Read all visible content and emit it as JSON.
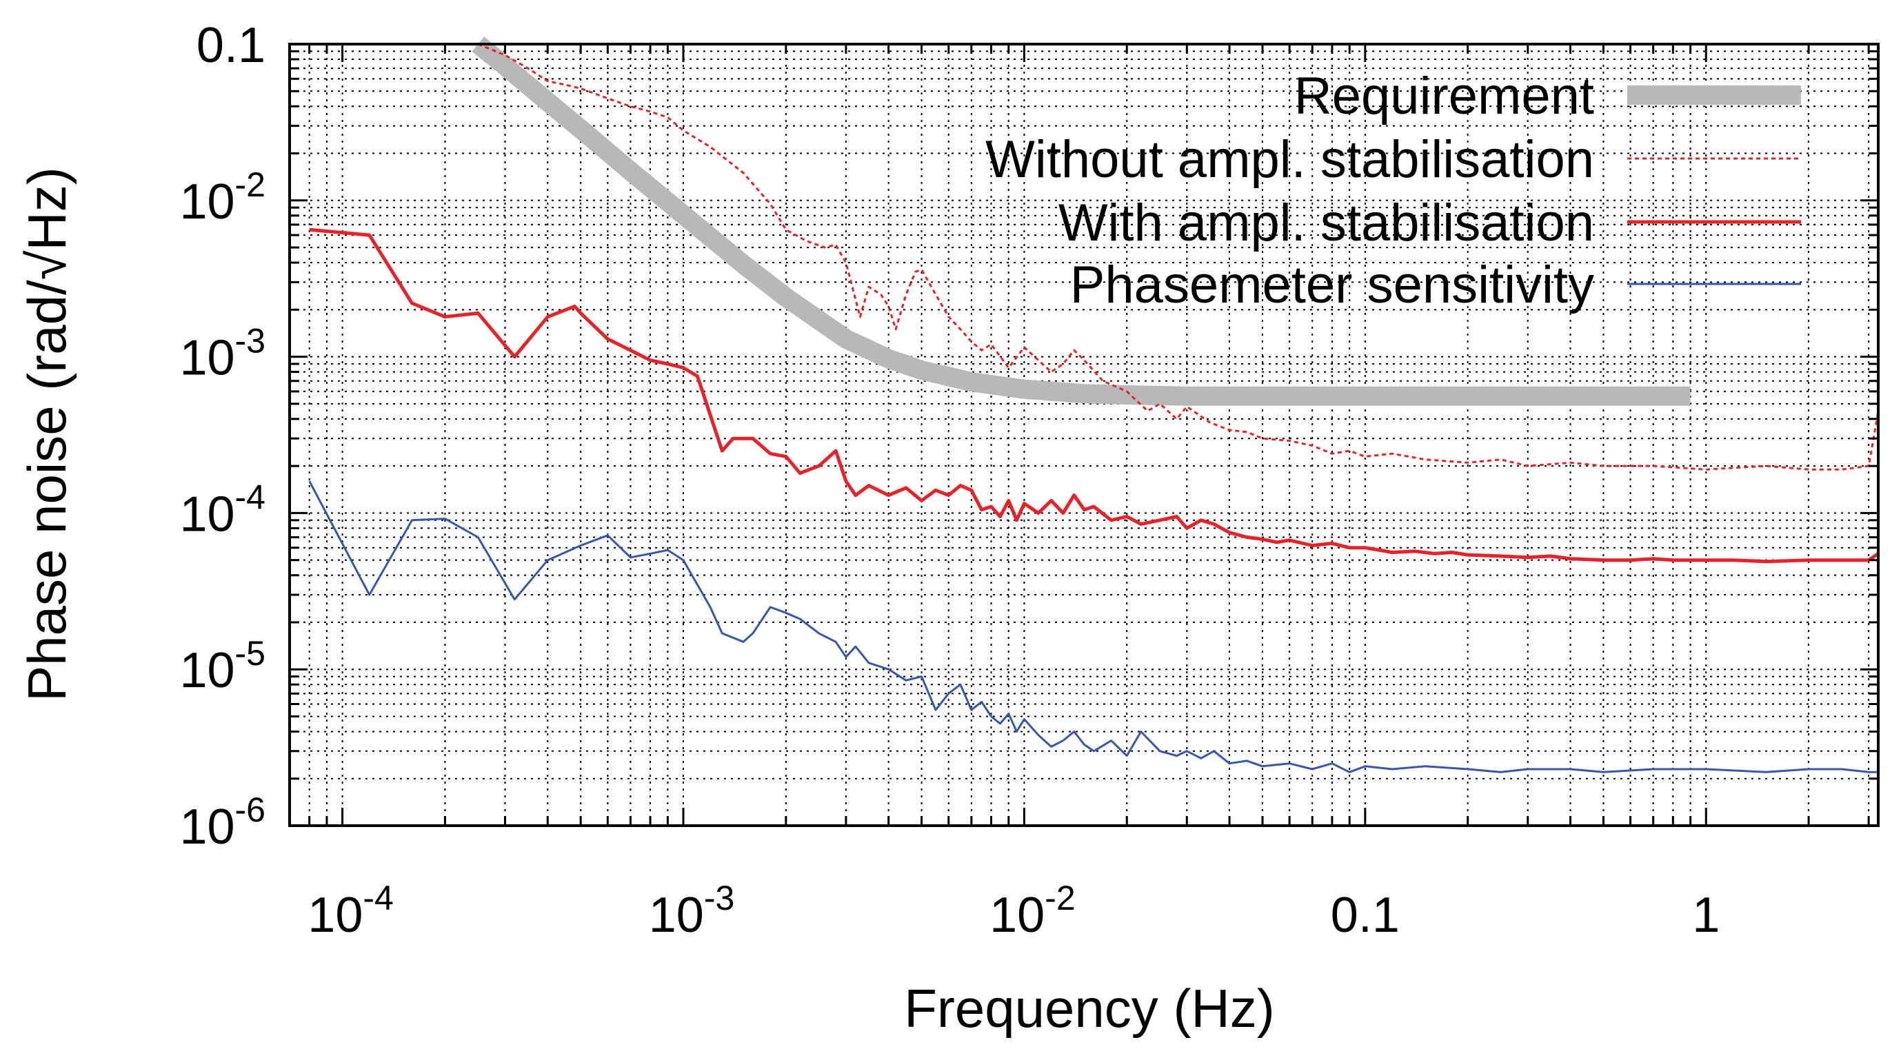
{
  "chart_data": {
    "type": "line",
    "xscale": "log",
    "yscale": "log",
    "title": "",
    "xlabel": "Frequency (Hz)",
    "ylabel": "Phase noise (rad/√Hz)",
    "xlim": [
      7e-05,
      3.2
    ],
    "ylim": [
      1e-06,
      0.1
    ],
    "grid": true,
    "legend_position": "top-right",
    "x_ticks": [
      {
        "value": 0.0001,
        "mantissa": "10",
        "exp": "-4"
      },
      {
        "value": 0.001,
        "mantissa": "10",
        "exp": "-3"
      },
      {
        "value": 0.01,
        "mantissa": "10",
        "exp": "-2"
      },
      {
        "value": 0.1,
        "mantissa": "0.1",
        "exp": ""
      },
      {
        "value": 1,
        "mantissa": "1",
        "exp": ""
      }
    ],
    "y_ticks": [
      {
        "value": 1e-06,
        "mantissa": "10",
        "exp": "-6"
      },
      {
        "value": 1e-05,
        "mantissa": "10",
        "exp": "-5"
      },
      {
        "value": 0.0001,
        "mantissa": "10",
        "exp": "-4"
      },
      {
        "value": 0.001,
        "mantissa": "10",
        "exp": "-3"
      },
      {
        "value": 0.01,
        "mantissa": "10",
        "exp": "-2"
      },
      {
        "value": 0.1,
        "mantissa": "0.1",
        "exp": ""
      }
    ],
    "series": [
      {
        "name": "Requirement",
        "color": "#b8b8b8",
        "style": "thick",
        "x": [
          0.00025,
          0.0003,
          0.0004,
          0.0005,
          0.0007,
          0.001,
          0.0015,
          0.002,
          0.003,
          0.004,
          0.005,
          0.007,
          0.01,
          0.015,
          0.02,
          0.03,
          0.05,
          0.1,
          0.2,
          0.5,
          0.9
        ],
        "y": [
          0.1,
          0.0725,
          0.0428,
          0.0286,
          0.0154,
          0.0081,
          0.0039,
          0.0024,
          0.0013,
          0.00097,
          0.00082,
          0.00069,
          0.00062,
          0.00058,
          0.00057,
          0.00056,
          0.00056,
          0.00056,
          0.00056,
          0.00056,
          0.00056
        ]
      },
      {
        "name": "Without ampl. stabilisation",
        "color": "#e8222a",
        "style": "dotted",
        "x": [
          0.00025,
          0.0003,
          0.00035,
          0.0004,
          0.00045,
          0.0005,
          0.0006,
          0.0007,
          0.0008,
          0.0009,
          0.001,
          0.0012,
          0.0015,
          0.0018,
          0.002,
          0.0023,
          0.0026,
          0.0028,
          0.003,
          0.0033,
          0.0035,
          0.0038,
          0.004,
          0.0042,
          0.0045,
          0.0048,
          0.005,
          0.0055,
          0.006,
          0.0065,
          0.007,
          0.0075,
          0.008,
          0.009,
          0.01,
          0.011,
          0.012,
          0.013,
          0.014,
          0.015,
          0.017,
          0.02,
          0.023,
          0.025,
          0.028,
          0.03,
          0.035,
          0.04,
          0.045,
          0.05,
          0.06,
          0.07,
          0.08,
          0.09,
          0.1,
          0.12,
          0.15,
          0.2,
          0.25,
          0.3,
          0.4,
          0.5,
          0.7,
          1.0,
          1.5,
          2.0,
          2.5,
          3.0,
          3.1,
          3.2
        ],
        "y": [
          0.1,
          0.085,
          0.07,
          0.058,
          0.055,
          0.052,
          0.045,
          0.04,
          0.037,
          0.034,
          0.028,
          0.022,
          0.015,
          0.0095,
          0.0065,
          0.0055,
          0.005,
          0.0052,
          0.004,
          0.0018,
          0.0028,
          0.0025,
          0.0021,
          0.0015,
          0.0025,
          0.0035,
          0.0036,
          0.0025,
          0.0018,
          0.0015,
          0.00125,
          0.0011,
          0.0012,
          0.00085,
          0.00115,
          0.00095,
          0.0008,
          0.0009,
          0.0011,
          0.00095,
          0.0007,
          0.0006,
          0.00045,
          0.0005,
          0.0004,
          0.00048,
          0.00038,
          0.00034,
          0.00033,
          0.0003,
          0.00029,
          0.00027,
          0.00024,
          0.00025,
          0.00023,
          0.00024,
          0.00022,
          0.00021,
          0.00022,
          0.0002,
          0.00021,
          0.0002,
          0.0002,
          0.00019,
          0.0002,
          0.00019,
          0.00019,
          0.0002,
          0.0003,
          0.00045
        ]
      },
      {
        "name": "With ampl. stabilisation",
        "color": "#e8222a",
        "style": "solid",
        "x": [
          8e-05,
          0.00012,
          0.00016,
          0.0002,
          0.00025,
          0.00032,
          0.0004,
          0.00048,
          0.0005,
          0.0006,
          0.0007,
          0.0008,
          0.0009,
          0.001,
          0.0011,
          0.0013,
          0.0014,
          0.0016,
          0.0018,
          0.002,
          0.0022,
          0.0025,
          0.0028,
          0.003,
          0.0032,
          0.0035,
          0.004,
          0.0045,
          0.005,
          0.0055,
          0.006,
          0.0065,
          0.007,
          0.0075,
          0.008,
          0.0085,
          0.009,
          0.0095,
          0.01,
          0.011,
          0.012,
          0.013,
          0.014,
          0.015,
          0.016,
          0.018,
          0.02,
          0.022,
          0.025,
          0.028,
          0.03,
          0.033,
          0.036,
          0.04,
          0.045,
          0.05,
          0.055,
          0.06,
          0.07,
          0.08,
          0.09,
          0.1,
          0.11,
          0.12,
          0.14,
          0.16,
          0.18,
          0.2,
          0.25,
          0.3,
          0.35,
          0.4,
          0.5,
          0.6,
          0.7,
          0.8,
          1.0,
          1.2,
          1.5,
          2.0,
          2.5,
          3.0,
          3.2
        ],
        "y": [
          0.0065,
          0.006,
          0.0022,
          0.0018,
          0.0019,
          0.001,
          0.0018,
          0.0021,
          0.0019,
          0.0013,
          0.0011,
          0.00095,
          0.0009,
          0.00085,
          0.00075,
          0.00025,
          0.0003,
          0.0003,
          0.00024,
          0.00023,
          0.00018,
          0.0002,
          0.00025,
          0.00016,
          0.00013,
          0.00015,
          0.00013,
          0.000145,
          0.00012,
          0.00014,
          0.00013,
          0.00015,
          0.00014,
          0.000105,
          0.00011,
          9.5e-05,
          0.00012,
          9e-05,
          0.000115,
          0.0001,
          0.00012,
          0.0001,
          0.00013,
          0.000105,
          0.00011,
          9e-05,
          9.5e-05,
          8.5e-05,
          9e-05,
          9.5e-05,
          8e-05,
          9e-05,
          8.5e-05,
          7.5e-05,
          7e-05,
          6.8e-05,
          6.5e-05,
          6.7e-05,
          6.2e-05,
          6.4e-05,
          6e-05,
          6e-05,
          5.8e-05,
          5.6e-05,
          5.7e-05,
          5.5e-05,
          5.6e-05,
          5.4e-05,
          5.3e-05,
          5.2e-05,
          5.3e-05,
          5.1e-05,
          5e-05,
          5e-05,
          5.1e-05,
          5e-05,
          5e-05,
          5e-05,
          4.9e-05,
          5e-05,
          5e-05,
          5e-05,
          5.5e-05
        ]
      },
      {
        "name": "Phasemeter sensitivity",
        "color": "#3a56a8",
        "style": "thin",
        "x": [
          8e-05,
          0.00012,
          0.00016,
          0.0002,
          0.00025,
          0.00032,
          0.0004,
          0.0005,
          0.0006,
          0.0007,
          0.0008,
          0.0009,
          0.001,
          0.0012,
          0.0013,
          0.0015,
          0.0016,
          0.0018,
          0.002,
          0.0022,
          0.0025,
          0.0028,
          0.003,
          0.0032,
          0.0035,
          0.004,
          0.0045,
          0.005,
          0.0055,
          0.006,
          0.0065,
          0.007,
          0.0075,
          0.008,
          0.0085,
          0.009,
          0.0095,
          0.01,
          0.011,
          0.012,
          0.013,
          0.014,
          0.015,
          0.016,
          0.018,
          0.02,
          0.022,
          0.025,
          0.028,
          0.03,
          0.033,
          0.036,
          0.04,
          0.045,
          0.05,
          0.06,
          0.07,
          0.08,
          0.09,
          0.1,
          0.12,
          0.15,
          0.2,
          0.25,
          0.3,
          0.4,
          0.5,
          0.7,
          1.0,
          1.5,
          2.0,
          2.5,
          3.0,
          3.2
        ],
        "y": [
          0.00016,
          3e-05,
          9e-05,
          9.2e-05,
          7e-05,
          2.8e-05,
          5e-05,
          6.2e-05,
          7.2e-05,
          5.2e-05,
          5.5e-05,
          5.8e-05,
          5e-05,
          2.5e-05,
          1.7e-05,
          1.5e-05,
          1.7e-05,
          2.5e-05,
          2.3e-05,
          2.1e-05,
          1.7e-05,
          1.5e-05,
          1.2e-05,
          1.4e-05,
          1.1e-05,
          1e-05,
          8.5e-06,
          9e-06,
          5.5e-06,
          7e-06,
          8e-06,
          5.5e-06,
          6.2e-06,
          5e-06,
          4.5e-06,
          5.2e-06,
          4e-06,
          4.8e-06,
          3.8e-06,
          3.2e-06,
          3.5e-06,
          4e-06,
          3.3e-06,
          3e-06,
          3.5e-06,
          2.8e-06,
          4e-06,
          3e-06,
          2.8e-06,
          3e-06,
          2.7e-06,
          3e-06,
          2.5e-06,
          2.6e-06,
          2.4e-06,
          2.5e-06,
          2.3e-06,
          2.5e-06,
          2.2e-06,
          2.4e-06,
          2.3e-06,
          2.4e-06,
          2.3e-06,
          2.2e-06,
          2.3e-06,
          2.3e-06,
          2.2e-06,
          2.3e-06,
          2.3e-06,
          2.2e-06,
          2.3e-06,
          2.3e-06,
          2.2e-06,
          2.2e-06
        ]
      }
    ]
  }
}
